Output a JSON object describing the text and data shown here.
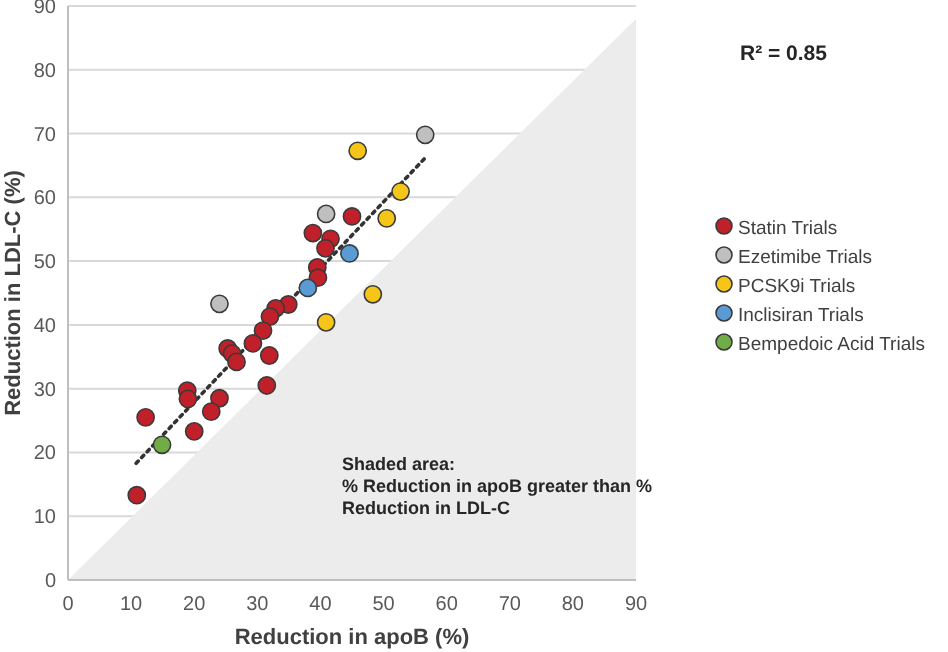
{
  "chart_data": {
    "type": "scatter",
    "xlabel": "Reduction in apoB (%)",
    "ylabel": "Reduction in LDL-C (%)",
    "xlim": [
      0,
      90
    ],
    "ylim": [
      0,
      90
    ],
    "xticks": [
      0,
      10,
      20,
      30,
      40,
      50,
      60,
      70,
      80,
      90
    ],
    "yticks": [
      0,
      10,
      20,
      30,
      40,
      50,
      60,
      70,
      80,
      90
    ],
    "grid": "y",
    "legend": "right",
    "annotations": [
      "R² = 0.85",
      "Shaded area:\n% Reduction in apoB greater than %\nReduction in LDL-C"
    ],
    "series": [
      {
        "type": "area",
        "color": "#ececec",
        "x": [
          0,
          90
        ],
        "values": [
          0,
          88
        ]
      },
      {
        "type": "line",
        "color": "#333333",
        "line_style": "dotted",
        "x": [
          10.8,
          56.8
        ],
        "values": [
          18.3,
          66.4
        ]
      },
      {
        "name": "Statin Trials",
        "marker": "circle",
        "color": "#c0202a",
        "x": [
          45,
          38.8,
          41.6,
          40.8,
          39.5,
          39.6,
          34.9,
          32.9,
          32,
          30.9,
          29.3,
          25.3,
          26,
          26.7,
          31.9,
          31.5,
          18.9,
          19,
          24,
          22.7,
          12.3,
          20,
          10.9
        ],
        "values": [
          57,
          54.4,
          53.5,
          52,
          49,
          47.4,
          43.2,
          42.6,
          41.3,
          39.1,
          37.1,
          36.3,
          35.5,
          34.2,
          35.2,
          30.5,
          29.7,
          28.4,
          28.5,
          26.4,
          25.5,
          23.3,
          13.3
        ]
      },
      {
        "name": "Ezetimibe Trials",
        "marker": "circle",
        "color": "#bfbfbf",
        "x": [
          56.6,
          40.9,
          24
        ],
        "values": [
          69.8,
          57.4,
          43.3
        ]
      },
      {
        "name": "PCSK9i Trials",
        "marker": "circle",
        "color": "#f5c518",
        "x": [
          45.9,
          52.7,
          50.5,
          48.3,
          40.9
        ],
        "values": [
          67.3,
          60.9,
          56.7,
          44.8,
          40.4
        ]
      },
      {
        "name": "Inclisiran Trials",
        "marker": "circle",
        "color": "#5b9bd5",
        "x": [
          44.6,
          38
        ],
        "values": [
          51.2,
          45.8
        ]
      },
      {
        "name": "Bempedoic Acid Trials",
        "marker": "circle",
        "color": "#70ad47",
        "x": [
          14.9
        ],
        "values": [
          21.2
        ]
      }
    ]
  }
}
